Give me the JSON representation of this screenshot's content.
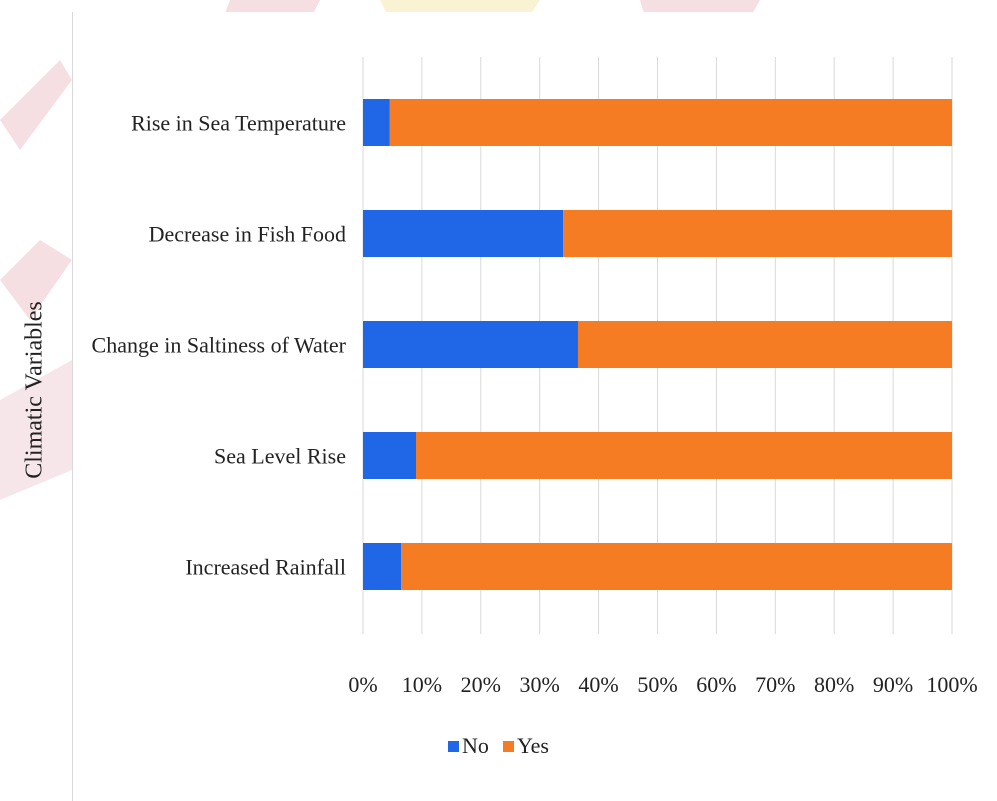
{
  "chart_data": {
    "type": "bar",
    "orientation": "horizontal",
    "stacked": true,
    "percent_stacked": true,
    "title": "",
    "xlabel": "",
    "ylabel": "Climatic Variables",
    "categories": [
      "Rise in Sea Temperature",
      "Decrease in Fish Food",
      "Change in Saltiness of Water",
      "Sea Level Rise",
      "Increased Rainfall"
    ],
    "series": [
      {
        "name": "No",
        "color": "#2067E8",
        "values": [
          4.5,
          34,
          36.5,
          9,
          6.5
        ]
      },
      {
        "name": "Yes",
        "color": "#F57C23",
        "values": [
          95.5,
          66,
          63.5,
          91,
          93.5
        ]
      }
    ],
    "xlim": [
      0,
      100
    ],
    "xticks": [
      "0%",
      "10%",
      "20%",
      "30%",
      "40%",
      "50%",
      "60%",
      "70%",
      "80%",
      "90%",
      "100%"
    ],
    "grid": "vertical",
    "legend_position": "bottom"
  }
}
